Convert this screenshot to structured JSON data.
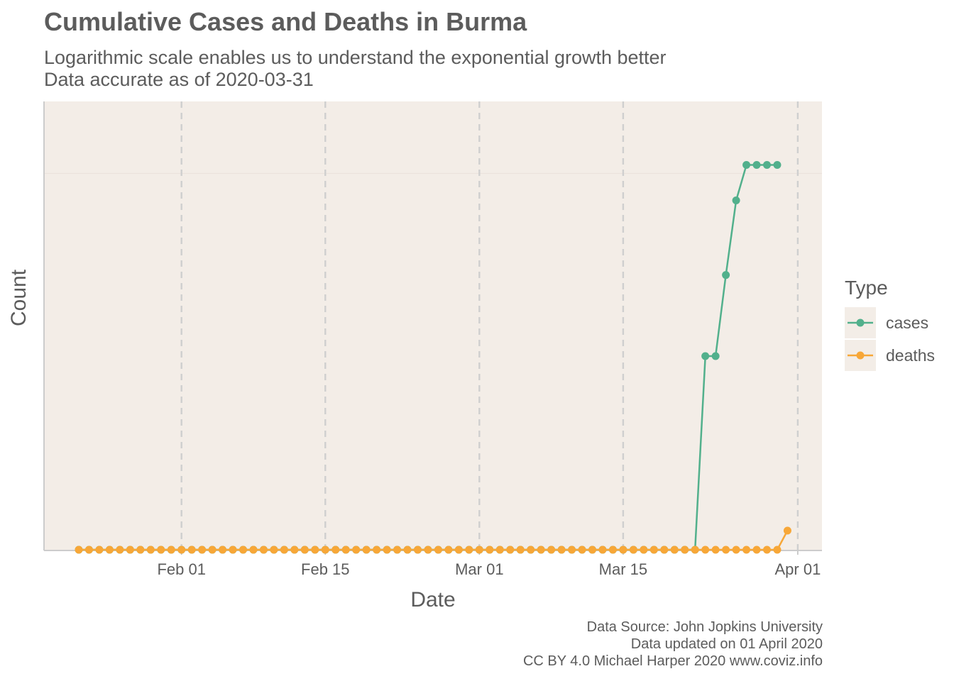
{
  "chart_data": {
    "type": "line",
    "title": "Cumulative Cases and Deaths in Burma",
    "subtitle": [
      "Logarithmic scale enables us to understand the exponential growth better",
      "Data accurate as of 2020-03-31"
    ],
    "xlabel": "Date",
    "ylabel": "Count",
    "x_ticks": [
      "Feb 01",
      "Feb 15",
      "Mar 01",
      "Mar 15",
      "Apr 01"
    ],
    "y_scale": "log",
    "grid": "vertical dashed",
    "legend": {
      "title": "Type",
      "placement": "right"
    },
    "x_range": [
      "2020-01-22",
      "2020-03-31"
    ],
    "series": [
      {
        "name": "cases",
        "color": "#52b08c",
        "points": [
          [
            "2020-03-22",
            0
          ],
          [
            "2020-03-23",
            3
          ],
          [
            "2020-03-24",
            3
          ],
          [
            "2020-03-25",
            5
          ],
          [
            "2020-03-26",
            8
          ],
          [
            "2020-03-27",
            10
          ],
          [
            "2020-03-28",
            10
          ],
          [
            "2020-03-29",
            10
          ],
          [
            "2020-03-30",
            10
          ]
        ],
        "zero_before": "2020-03-22"
      },
      {
        "name": "deaths",
        "color": "#f7a738",
        "points": [
          [
            "2020-03-30",
            0
          ],
          [
            "2020-03-31",
            1
          ]
        ],
        "zero_before": "2020-03-30"
      }
    ],
    "caption": [
      "Data Source: John Jopkins University",
      "Data updated on 01 April 2020",
      "CC BY 4.0 Michael Harper 2020 www.coviz.info"
    ]
  }
}
